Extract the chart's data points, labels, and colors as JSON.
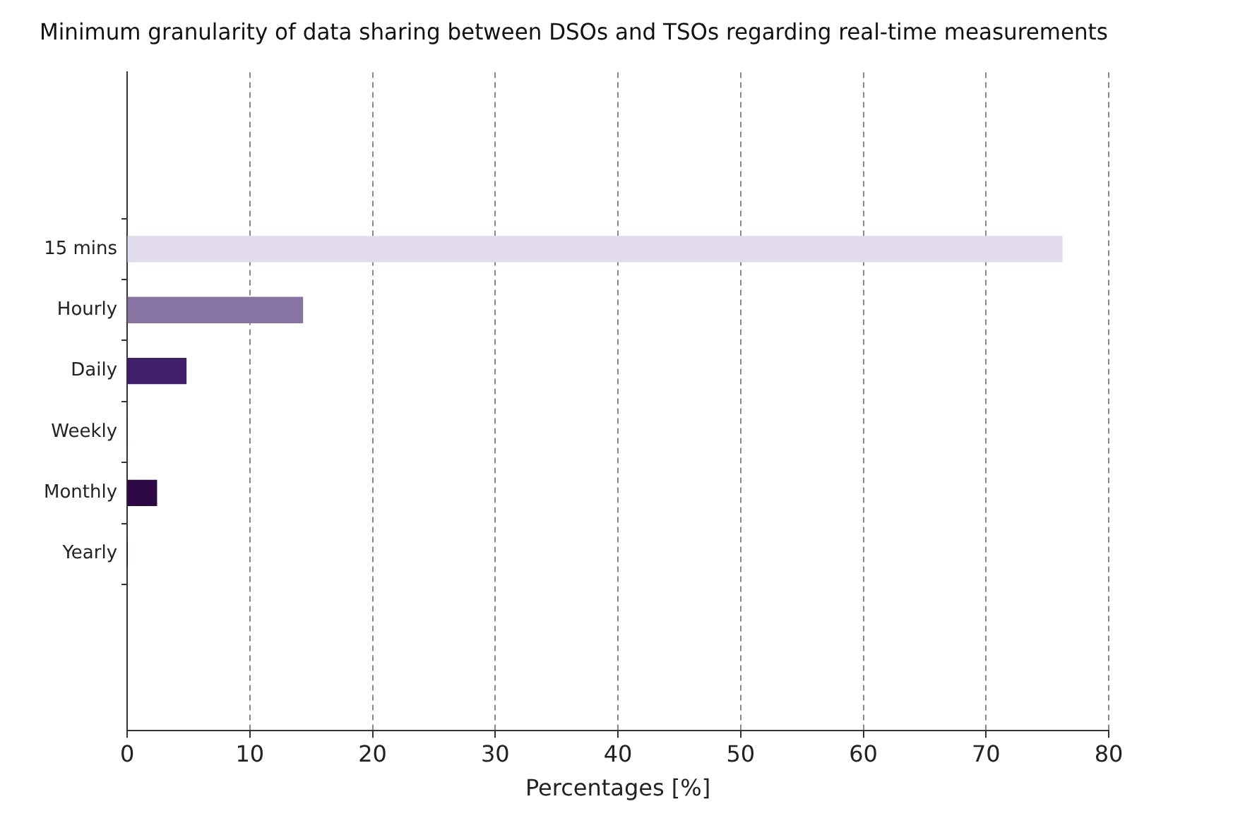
{
  "chart_data": {
    "type": "bar",
    "orientation": "horizontal",
    "title": "Minimum granularity of data sharing between DSOs and TSOs regarding real-time measurements",
    "xlabel": "Percentages [%]",
    "categories": [
      "15 mins",
      "Hourly",
      "Daily",
      "Weekly",
      "Monthly",
      "Yearly"
    ],
    "values": [
      76.2,
      14.3,
      4.8,
      0,
      2.4,
      0
    ],
    "colors": [
      "#e2dbf0",
      "#8874a3",
      "#3f1f69",
      "#35154f",
      "#2d0a46",
      "#220538"
    ],
    "xlim": [
      0,
      80
    ],
    "xticks": [
      0,
      10,
      20,
      30,
      40,
      50,
      60,
      70,
      80
    ],
    "grid": "x",
    "legend": false
  }
}
